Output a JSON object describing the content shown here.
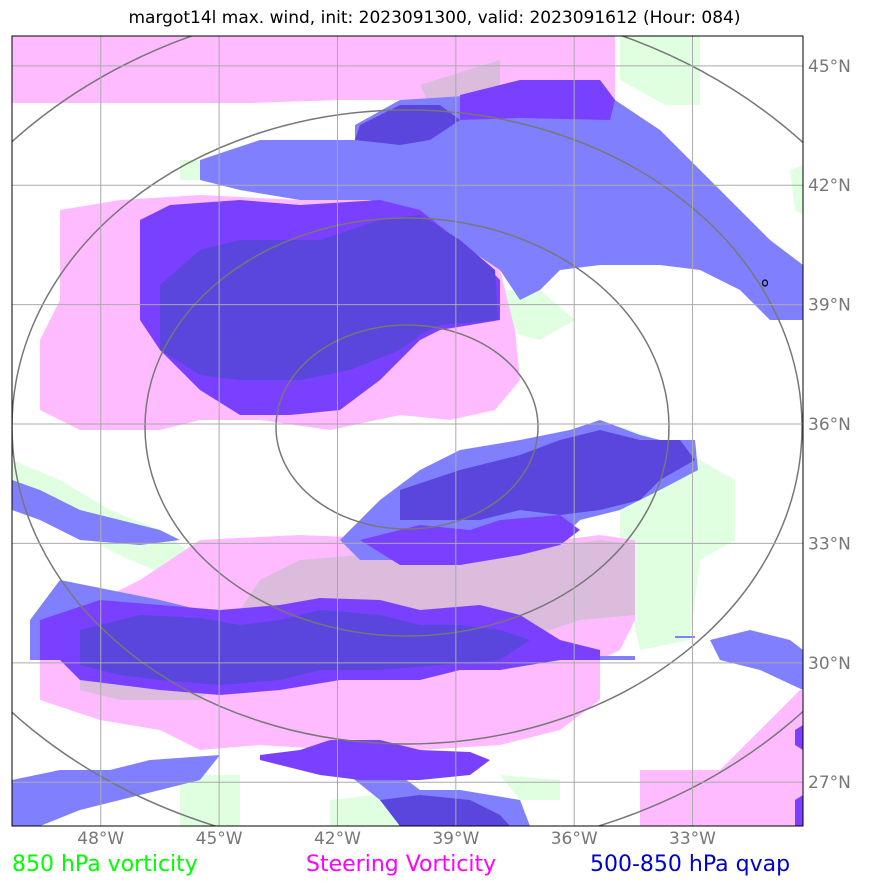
{
  "chart_data": {
    "type": "map",
    "title": "margot14l max. wind, init: 2023091300, valid: 2023091612 (Hour: 084)",
    "lon_ticks": [
      -48,
      -45,
      -42,
      -39,
      -36,
      -33
    ],
    "lat_ticks": [
      27,
      30,
      33,
      36,
      39,
      42,
      45
    ],
    "lon_labels": [
      "48°W",
      "45°W",
      "42°W",
      "39°W",
      "36°W",
      "33°W"
    ],
    "lat_labels": [
      "27°N",
      "30°N",
      "33°N",
      "36°N",
      "39°N",
      "42°N",
      "45°N"
    ],
    "lon_range": [
      -50.25,
      -30.2
    ],
    "lat_range": [
      25.9,
      45.75
    ],
    "grid": true,
    "storm_center": {
      "lon": -40.3,
      "lat": 35.8
    },
    "range_rings": 4,
    "legend": [
      {
        "label": "850 hPa vorticity",
        "color": "#00ff00"
      },
      {
        "label": "Steering Vorticity",
        "color": "#ff00ff"
      },
      {
        "label": "500-850 hPa qvap",
        "color": "#0000cc"
      }
    ],
    "fill_colors": {
      "vorticity_850": "#e0ffe0",
      "steering_vorticity": "#ffbbff",
      "qvap_light": "#8080ff",
      "qvap_dark": "#7a40ff",
      "qvap_overlap": "#5a45dd"
    }
  }
}
